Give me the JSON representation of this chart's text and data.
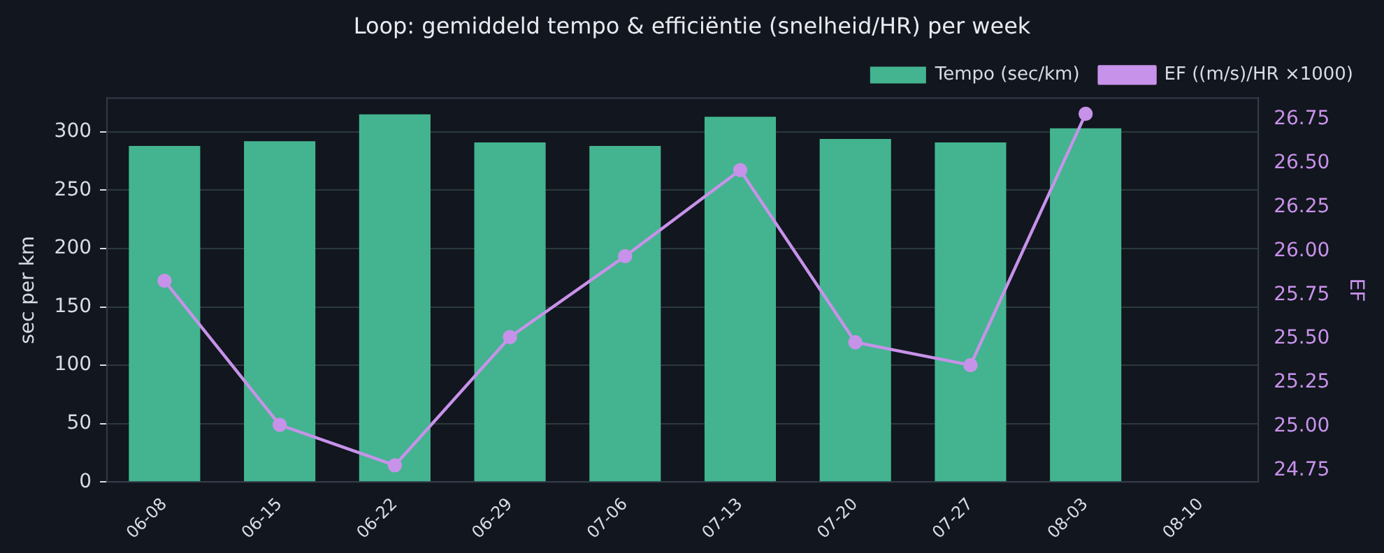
{
  "chart_data": {
    "type": "bar",
    "title": "Loop: gemiddeld tempo & efficiëntie (snelheid/HR) per week",
    "categories": [
      "06-08",
      "06-15",
      "06-22",
      "06-29",
      "07-06",
      "07-13",
      "07-20",
      "07-27",
      "08-03",
      "08-10"
    ],
    "series": [
      {
        "name": "Tempo (sec/km)",
        "color": "#43b48f",
        "values": [
          288,
          292,
          315,
          291,
          288,
          313,
          294,
          291,
          303,
          null
        ]
      },
      {
        "name": "EF ((m/s)/HR ×1000)",
        "type": "line",
        "axis": "y2",
        "color": "#c792ea",
        "values": [
          25.83,
          25.01,
          24.78,
          25.51,
          25.97,
          26.46,
          25.48,
          25.35,
          26.78,
          null
        ]
      }
    ],
    "ylabel": "sec per km",
    "y2label": "EF",
    "ylim": [
      0,
      329
    ],
    "yticks": [
      0,
      50,
      100,
      150,
      200,
      250,
      300
    ],
    "y2lim": [
      24.685,
      26.87
    ],
    "y2ticks": [
      {
        "value": 24.75,
        "label": "24.75"
      },
      {
        "value": 25,
        "label": "25.00"
      },
      {
        "value": 25.25,
        "label": "25.25"
      },
      {
        "value": 25.5,
        "label": "25.50"
      },
      {
        "value": 25.75,
        "label": "25.75"
      },
      {
        "value": 26,
        "label": "26.00"
      },
      {
        "value": 26.25,
        "label": "26.25"
      },
      {
        "value": 26.5,
        "label": "26.50"
      },
      {
        "value": 26.75,
        "label": "26.75"
      }
    ],
    "grid": "y",
    "legend": "top right",
    "marker": "circle",
    "line_style": "solid"
  }
}
